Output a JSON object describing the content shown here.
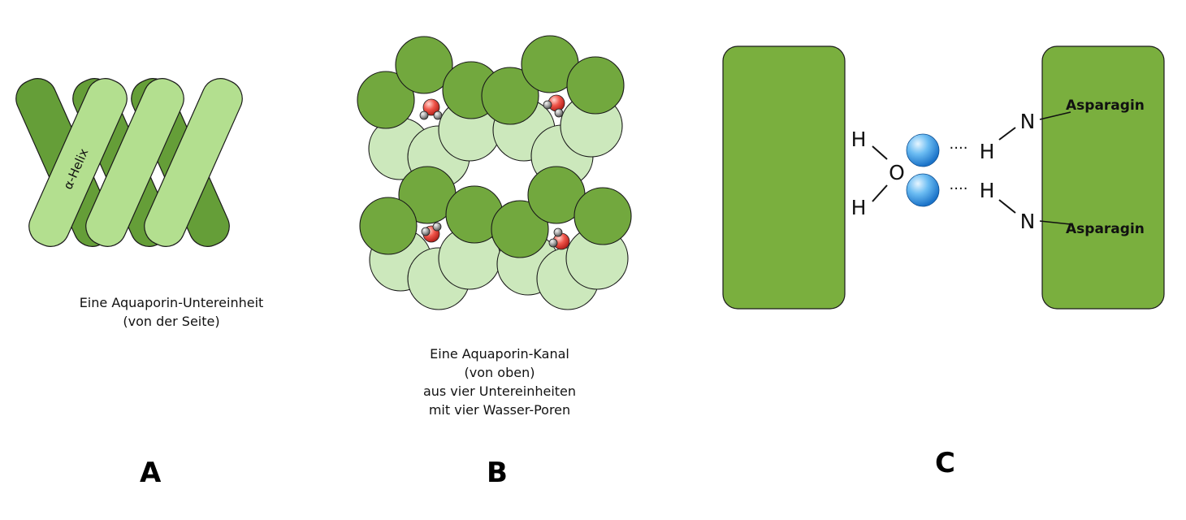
{
  "panel_a": {
    "letter": "A",
    "helix_label": "α-Helix",
    "caption_lines": [
      "Eine Aquaporin-Untereinheit",
      "(von der Seite)"
    ]
  },
  "panel_b": {
    "letter": "B",
    "caption_lines": [
      "Eine Aquaporin-Kanal",
      "(von oben)",
      "aus vier Untereinheiten",
      "mit vier Wasser-Poren"
    ]
  },
  "panel_c": {
    "letter": "C",
    "water": {
      "h_top": "H",
      "o": "O",
      "h_bottom": "H"
    },
    "bonds": {
      "h_top": "H",
      "n_top": "N",
      "h_bottom": "H",
      "n_bottom": "N",
      "dots": "····"
    },
    "residue_top": "Asparagin",
    "residue_bottom": "Asparagin"
  },
  "colors": {
    "dark_green": "#659e38",
    "light_green": "#b3df8f",
    "pale_green": "#cce8bc",
    "block_green": "#7aaf3e",
    "oxygen_red": "#e53935",
    "hydrogen_grey": "#9a9a9a",
    "sphere_blue": "#2a8fe0"
  }
}
